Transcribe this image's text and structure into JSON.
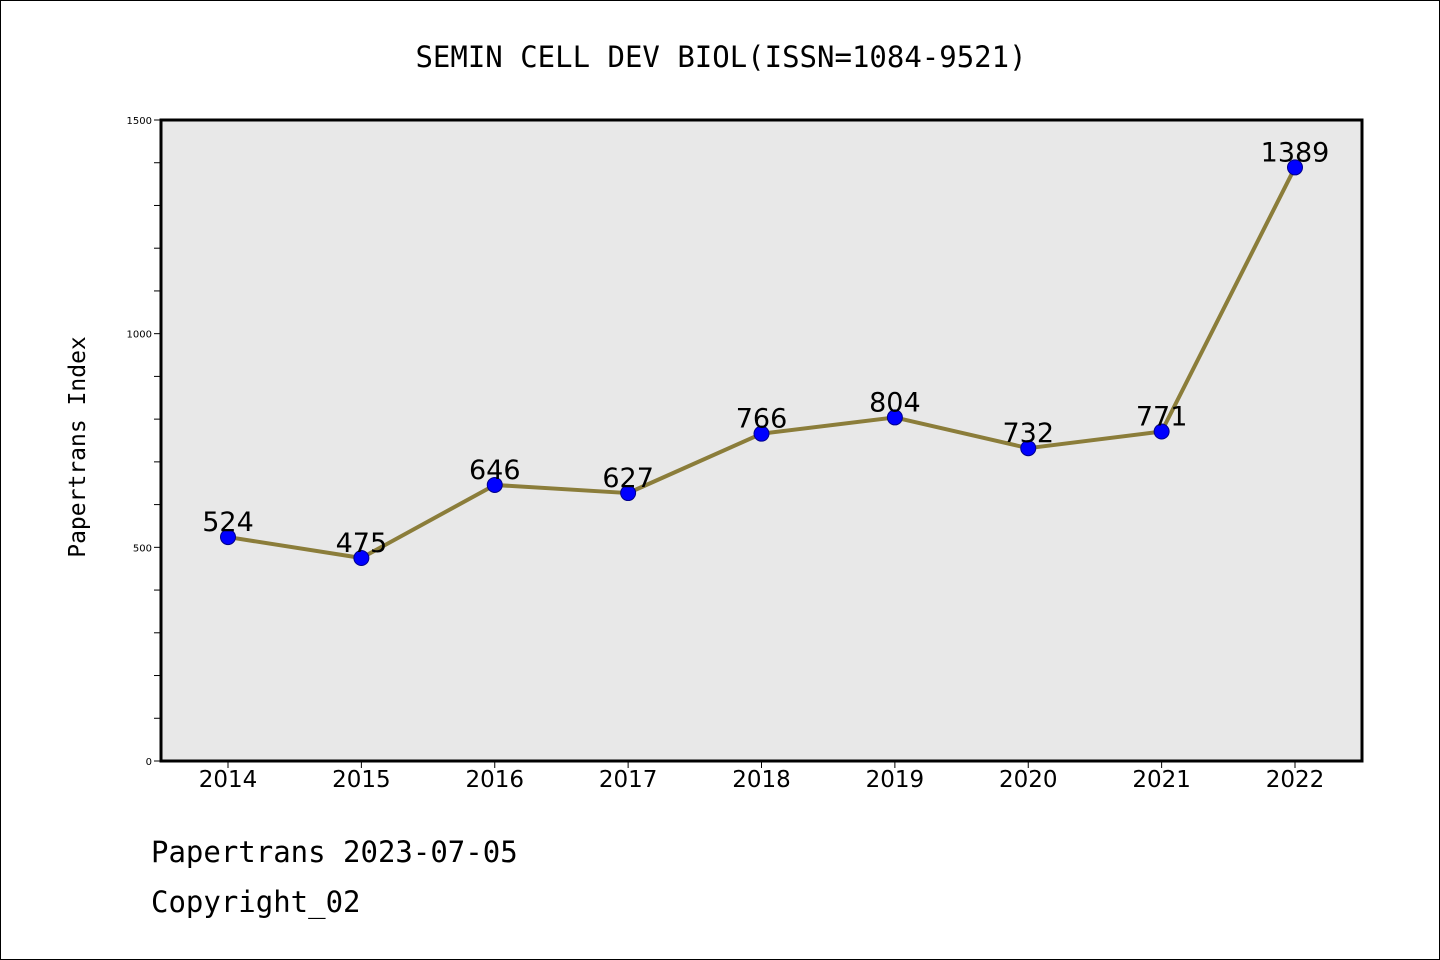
{
  "chart_data": {
    "type": "line",
    "title": "SEMIN CELL DEV BIOL(ISSN=1084-9521)",
    "ylabel": "Papertrans Index",
    "xlabel": "",
    "categories": [
      "2014",
      "2015",
      "2016",
      "2017",
      "2018",
      "2019",
      "2020",
      "2021",
      "2022"
    ],
    "series": [
      {
        "values": [
          524,
          475,
          646,
          627,
          766,
          804,
          732,
          771,
          1389
        ]
      }
    ],
    "data_labels": [
      "524",
      "475",
      "646",
      "627",
      "766",
      "804",
      "732",
      "771",
      "1389"
    ],
    "ylim": [
      0,
      1500
    ],
    "y_ticks": [
      0,
      500,
      1000,
      1500
    ],
    "y_minor_step": 100,
    "grid": false,
    "legend": "none",
    "colors": {
      "line": "#8b7d3a",
      "marker_fill": "#0000ff",
      "marker_edge": "#00008b",
      "plot_background": "#e8e8e8"
    }
  },
  "footer": {
    "line1": "Papertrans 2023-07-05",
    "line2": "Copyright_02"
  }
}
